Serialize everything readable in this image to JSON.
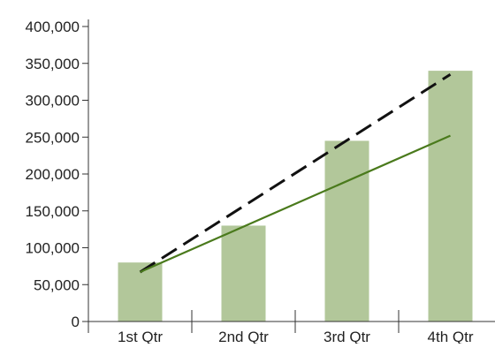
{
  "chart_data": {
    "type": "bar",
    "categories": [
      "1st Qtr",
      "2nd Qtr",
      "3rd Qtr",
      "4th Qtr"
    ],
    "values": [
      80000,
      130000,
      245000,
      340000
    ],
    "ylim": [
      0,
      400000
    ],
    "yticks": [
      0,
      50000,
      100000,
      150000,
      200000,
      250000,
      300000,
      350000,
      400000
    ],
    "ytick_labels": [
      "0",
      "50,000",
      "100,000",
      "150,000",
      "200,000",
      "250,000",
      "300,000",
      "350,000",
      "400,000"
    ],
    "grid": false,
    "overlays": [
      {
        "style": "dashed",
        "color": "#111111",
        "y_start": 67000,
        "y_end": 335000
      },
      {
        "style": "solid",
        "color": "#4a7a1c",
        "y_start": 67000,
        "y_end": 252000
      }
    ]
  },
  "colors": {
    "bar": "#b2c79a",
    "axis": "#333333",
    "text": "#222222"
  }
}
